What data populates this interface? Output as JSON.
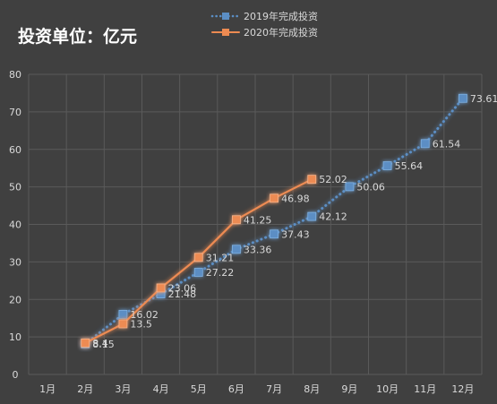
{
  "chart_data": {
    "type": "line",
    "title": "投资单位：亿元",
    "xlabel": "",
    "ylabel": "",
    "categories": [
      "1月",
      "2月",
      "3月",
      "4月",
      "5月",
      "6月",
      "7月",
      "8月",
      "9月",
      "10月",
      "11月",
      "12月"
    ],
    "ylim": [
      0,
      80
    ],
    "yticks": [
      0,
      10,
      20,
      30,
      40,
      50,
      60,
      70,
      80
    ],
    "grid": true,
    "legend_position": "top",
    "series": [
      {
        "name": "2019年完成投资",
        "color": "#5b8ec4",
        "style": "dotted",
        "values": [
          null,
          8.15,
          16.02,
          21.48,
          27.22,
          33.36,
          37.43,
          42.12,
          50.06,
          55.64,
          61.54,
          73.61
        ]
      },
      {
        "name": "2020年完成投资",
        "color": "#ed8b52",
        "style": "solid",
        "values": [
          null,
          8.4,
          13.5,
          23.06,
          31.21,
          41.25,
          46.98,
          52.02,
          null,
          null,
          null,
          null
        ]
      }
    ]
  }
}
